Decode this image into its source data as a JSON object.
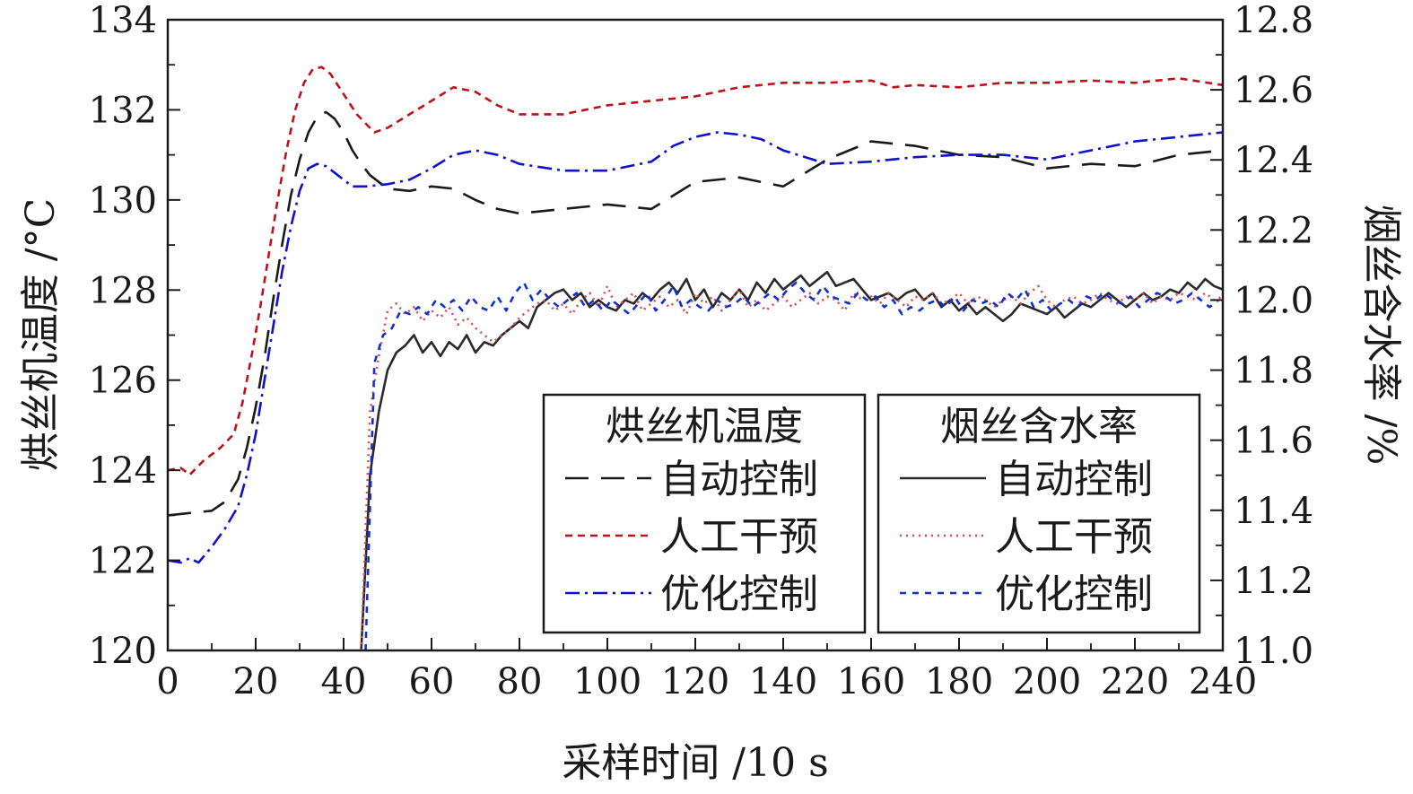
{
  "chart_data": {
    "type": "line",
    "xlabel": "采样时间 /10 s",
    "ylabel_left": "烘丝机温度 /°C",
    "ylabel_right": "烟丝含水率 /%",
    "xlim": [
      0,
      240
    ],
    "ylim_left": [
      120,
      134
    ],
    "ylim_right": [
      11.0,
      12.8
    ],
    "x_ticks": [
      "0",
      "20",
      "40",
      "60",
      "80",
      "100",
      "120",
      "140",
      "160",
      "180",
      "200",
      "220",
      "240"
    ],
    "y_left_ticks": [
      "120",
      "122",
      "124",
      "126",
      "128",
      "130",
      "132",
      "134"
    ],
    "y_right_ticks": [
      "11.0",
      "11.2",
      "11.4",
      "11.6",
      "11.8",
      "12.0",
      "12.2",
      "12.4",
      "12.6",
      "12.8"
    ],
    "grid": false,
    "legend": {
      "placement": "bottom-right",
      "groups": [
        {
          "title": "烘丝机温度",
          "items": [
            "自动控制",
            "人工干预",
            "优化控制"
          ]
        },
        {
          "title": "烟丝含水率",
          "items": [
            "自动控制",
            "人工干预",
            "优化控制"
          ]
        }
      ]
    },
    "series": [
      {
        "name": "烘丝机温度 自动控制",
        "axis": "left",
        "color": "#1a1a1a",
        "dash": "long-dash",
        "x": [
          0,
          5,
          10,
          13,
          16,
          18,
          20,
          22,
          24,
          26,
          28,
          30,
          32,
          34,
          36,
          38,
          40,
          42,
          44,
          46,
          48,
          50,
          55,
          60,
          65,
          70,
          75,
          80,
          90,
          100,
          110,
          120,
          130,
          140,
          150,
          160,
          170,
          180,
          190,
          200,
          210,
          220,
          230,
          240
        ],
        "y": [
          123.0,
          123.05,
          123.1,
          123.3,
          123.8,
          124.5,
          125.4,
          126.5,
          127.8,
          129.0,
          130.1,
          130.9,
          131.5,
          131.85,
          131.95,
          131.8,
          131.5,
          131.1,
          130.8,
          130.55,
          130.4,
          130.25,
          130.2,
          130.3,
          130.25,
          130.0,
          129.8,
          129.7,
          129.8,
          129.9,
          129.8,
          130.4,
          130.5,
          130.3,
          130.9,
          131.3,
          131.2,
          131.0,
          130.95,
          130.7,
          130.8,
          130.75,
          131.0,
          131.1
        ]
      },
      {
        "name": "烘丝机温度 人工干预",
        "axis": "left",
        "color": "#c0101a",
        "dash": "short-dash",
        "x": [
          0,
          3,
          5,
          8,
          12,
          15,
          17,
          19,
          21,
          23,
          25,
          27,
          29,
          31,
          33,
          35,
          37,
          39,
          41,
          43,
          45,
          47,
          50,
          55,
          60,
          65,
          70,
          75,
          80,
          90,
          100,
          110,
          120,
          130,
          140,
          150,
          160,
          165,
          170,
          180,
          190,
          200,
          210,
          220,
          230,
          240
        ],
        "y": [
          124.0,
          124.05,
          123.9,
          124.2,
          124.5,
          124.8,
          125.5,
          126.5,
          127.6,
          128.8,
          130.0,
          131.1,
          132.0,
          132.6,
          132.9,
          132.95,
          132.8,
          132.5,
          132.2,
          131.9,
          131.7,
          131.5,
          131.6,
          131.9,
          132.2,
          132.5,
          132.4,
          132.1,
          131.9,
          131.9,
          132.1,
          132.2,
          132.3,
          132.5,
          132.6,
          132.6,
          132.65,
          132.5,
          132.55,
          132.5,
          132.6,
          132.6,
          132.65,
          132.6,
          132.7,
          132.55
        ]
      },
      {
        "name": "烘丝机温度 优化控制",
        "axis": "left",
        "color": "#1010d0",
        "dash": "dash-dot",
        "x": [
          0,
          3,
          5,
          7,
          10,
          13,
          16,
          18,
          20,
          22,
          24,
          26,
          28,
          30,
          32,
          34,
          36,
          38,
          40,
          42,
          45,
          50,
          55,
          60,
          65,
          70,
          75,
          80,
          90,
          100,
          110,
          115,
          120,
          125,
          130,
          135,
          140,
          150,
          160,
          170,
          180,
          190,
          200,
          210,
          220,
          230,
          240
        ],
        "y": [
          122.0,
          121.95,
          122.05,
          121.95,
          122.3,
          122.7,
          123.2,
          123.9,
          124.8,
          126.0,
          127.2,
          128.4,
          129.4,
          130.2,
          130.7,
          130.8,
          130.75,
          130.6,
          130.45,
          130.3,
          130.3,
          130.35,
          130.45,
          130.7,
          131.0,
          131.1,
          131.0,
          130.8,
          130.65,
          130.65,
          130.85,
          131.2,
          131.4,
          131.5,
          131.45,
          131.35,
          131.1,
          130.8,
          130.85,
          130.95,
          131.0,
          131.0,
          130.9,
          131.1,
          131.3,
          131.4,
          131.5
        ]
      },
      {
        "name": "烟丝含水率 自动控制",
        "axis": "right",
        "color": "#2a2a2a",
        "dash": "solid",
        "x": [
          44,
          46,
          48,
          50,
          52,
          54,
          56,
          58,
          60,
          62,
          64,
          66,
          68,
          70,
          72,
          74,
          76,
          78,
          80,
          82,
          84,
          86,
          88,
          90,
          92,
          94,
          96,
          98,
          100,
          102,
          104,
          106,
          108,
          110,
          112,
          114,
          116,
          118,
          120,
          122,
          124,
          126,
          128,
          130,
          132,
          134,
          136,
          138,
          140,
          142,
          144,
          146,
          148,
          150,
          152,
          154,
          156,
          158,
          160,
          162,
          164,
          166,
          168,
          170,
          172,
          174,
          176,
          178,
          180,
          182,
          184,
          186,
          188,
          190,
          192,
          194,
          196,
          198,
          200,
          202,
          204,
          206,
          208,
          210,
          212,
          214,
          216,
          218,
          220,
          222,
          224,
          226,
          228,
          230,
          232,
          234,
          236,
          238,
          240
        ],
        "y": [
          11.0,
          11.5,
          11.68,
          11.8,
          11.85,
          11.87,
          11.9,
          11.85,
          11.88,
          11.84,
          11.88,
          11.86,
          11.9,
          11.85,
          11.88,
          11.87,
          11.9,
          11.92,
          11.94,
          11.92,
          11.98,
          12.0,
          12.02,
          12.03,
          12.0,
          12.02,
          11.98,
          12.0,
          11.98,
          11.97,
          12.0,
          11.99,
          12.02,
          12.0,
          12.03,
          12.05,
          12.02,
          12.06,
          12.0,
          12.03,
          11.98,
          12.02,
          12.0,
          12.03,
          12.0,
          12.05,
          12.02,
          12.06,
          12.03,
          12.05,
          12.07,
          12.04,
          12.06,
          12.08,
          12.04,
          12.05,
          12.06,
          12.03,
          12.0,
          12.01,
          12.02,
          12.0,
          12.02,
          12.03,
          12.0,
          12.02,
          11.98,
          12.0,
          11.97,
          11.99,
          11.96,
          11.98,
          11.96,
          11.94,
          11.96,
          11.99,
          11.98,
          11.97,
          11.96,
          11.98,
          11.95,
          11.97,
          11.99,
          11.98,
          12.0,
          12.02,
          12.0,
          11.98,
          12.0,
          12.02,
          12.0,
          12.01,
          12.03,
          12.02,
          12.05,
          12.03,
          12.06,
          12.04,
          12.03
        ]
      },
      {
        "name": "烟丝含水率 人工干预",
        "axis": "right",
        "color": "#e04850",
        "dash": "dotted",
        "x": [
          44,
          46,
          48,
          50,
          52,
          54,
          56,
          58,
          60,
          62,
          64,
          66,
          68,
          70,
          72,
          74,
          76,
          78,
          80,
          82,
          84,
          86,
          88,
          90,
          92,
          94,
          96,
          98,
          100,
          102,
          104,
          106,
          108,
          110,
          112,
          114,
          116,
          118,
          120,
          122,
          124,
          126,
          128,
          130,
          132,
          134,
          136,
          138,
          140,
          142,
          144,
          146,
          148,
          150,
          152,
          154,
          156,
          158,
          160,
          162,
          164,
          166,
          168,
          170,
          172,
          174,
          176,
          178,
          180,
          182,
          184,
          186,
          188,
          190,
          192,
          194,
          196,
          198,
          200,
          202,
          204,
          206,
          208,
          210,
          212,
          214,
          216,
          218,
          220,
          222,
          224,
          226,
          228,
          230,
          232,
          234,
          236,
          238,
          240
        ],
        "y": [
          11.0,
          11.68,
          11.84,
          11.97,
          11.99,
          11.96,
          11.98,
          11.94,
          11.97,
          11.95,
          11.98,
          11.93,
          11.95,
          11.92,
          11.9,
          11.88,
          11.9,
          11.92,
          11.95,
          11.97,
          11.99,
          12.0,
          11.97,
          11.99,
          11.96,
          12.0,
          12.02,
          11.98,
          12.04,
          11.98,
          12.0,
          12.02,
          11.97,
          11.99,
          12.01,
          11.98,
          12.0,
          11.96,
          12.02,
          11.99,
          12.01,
          11.97,
          12.0,
          12.03,
          11.98,
          12.0,
          11.97,
          11.99,
          12.01,
          11.98,
          12.0,
          12.02,
          11.99,
          12.01,
          12.0,
          11.97,
          12.02,
          12.0,
          12.01,
          11.99,
          12.02,
          12.0,
          11.98,
          12.01,
          12.0,
          12.02,
          11.99,
          12.0,
          12.02,
          11.99,
          12.01,
          12.0,
          11.98,
          12.0,
          12.01,
          11.99,
          12.02,
          12.04,
          12.0,
          11.98,
          12.0,
          12.01,
          11.99,
          12.0,
          12.02,
          12.0,
          11.99,
          12.01,
          12.0,
          12.02,
          11.99,
          12.01,
          12.0,
          12.02,
          12.01,
          12.0,
          12.02,
          12.0,
          12.01
        ]
      },
      {
        "name": "烟丝含水率 优化控制",
        "axis": "right",
        "color": "#1030d0",
        "dash": "fine-dash",
        "x": [
          45,
          47,
          49,
          51,
          53,
          55,
          57,
          59,
          61,
          63,
          65,
          67,
          69,
          71,
          73,
          75,
          77,
          79,
          81,
          83,
          85,
          87,
          89,
          91,
          93,
          95,
          97,
          99,
          101,
          103,
          105,
          107,
          109,
          111,
          113,
          115,
          117,
          119,
          121,
          123,
          125,
          127,
          129,
          131,
          133,
          135,
          137,
          139,
          141,
          143,
          145,
          147,
          149,
          151,
          153,
          155,
          157,
          159,
          161,
          163,
          165,
          167,
          169,
          171,
          173,
          175,
          177,
          179,
          181,
          183,
          185,
          187,
          189,
          191,
          193,
          195,
          197,
          199,
          201,
          203,
          205,
          207,
          209,
          211,
          213,
          215,
          217,
          219,
          221,
          223,
          225,
          227,
          229,
          231,
          233,
          235,
          237,
          239
        ],
        "y": [
          11.0,
          11.82,
          11.9,
          11.92,
          11.97,
          11.96,
          11.98,
          11.96,
          12.0,
          11.98,
          12.0,
          11.97,
          12.01,
          11.98,
          11.97,
          12.01,
          11.97,
          12.02,
          12.05,
          12.0,
          12.03,
          12.0,
          11.98,
          12.0,
          12.02,
          11.98,
          12.0,
          11.97,
          12.0,
          11.98,
          11.96,
          11.99,
          12.02,
          11.97,
          12.0,
          12.04,
          11.98,
          12.0,
          11.98,
          11.97,
          12.0,
          11.98,
          11.99,
          12.01,
          11.98,
          12.0,
          12.02,
          12.0,
          12.03,
          12.05,
          12.02,
          12.0,
          12.04,
          12.01,
          12.0,
          11.99,
          12.02,
          12.0,
          12.01,
          11.98,
          12.0,
          11.96,
          11.98,
          11.97,
          11.99,
          12.0,
          11.98,
          12.01,
          11.97,
          12.0,
          11.99,
          12.0,
          11.98,
          12.02,
          12.0,
          12.03,
          11.98,
          12.0,
          11.97,
          11.99,
          12.0,
          11.98,
          12.01,
          12.0,
          12.02,
          12.0,
          11.99,
          12.01,
          11.98,
          12.0,
          12.02,
          12.01,
          11.99,
          12.0,
          12.02,
          12.0,
          11.98,
          12.0
        ]
      }
    ]
  }
}
